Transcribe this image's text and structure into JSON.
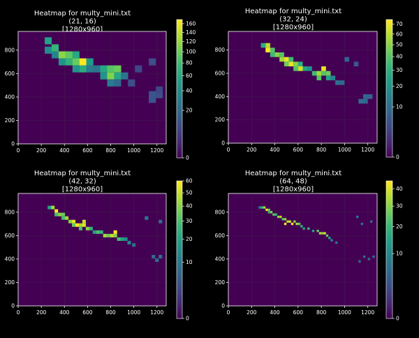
{
  "theme": {
    "background": "#000000",
    "foreground": "#ffffff",
    "grid": "#3a3a3a",
    "colormap": "viridis"
  },
  "chart_data": [
    {
      "type": "heatmap",
      "title": [
        "Heatmap for multy_mini.txt",
        "(21, 16)",
        "[1280x960]"
      ],
      "grid_size": [
        21,
        16
      ],
      "xlim": [
        0,
        1280
      ],
      "ylim": [
        0,
        960
      ],
      "xticks": [
        0,
        200,
        400,
        600,
        800,
        1000,
        1200
      ],
      "yticks": [
        0,
        200,
        400,
        600,
        800
      ],
      "colorbar": {
        "min": 0,
        "max": 170,
        "scale": "sqrt",
        "ticks": [
          0,
          20,
          40,
          60,
          80,
          100,
          120,
          140,
          160
        ]
      },
      "cells": [
        [
          260,
          880,
          55
        ],
        [
          260,
          800,
          40
        ],
        [
          320,
          820,
          75
        ],
        [
          320,
          760,
          35
        ],
        [
          380,
          760,
          115
        ],
        [
          380,
          700,
          45
        ],
        [
          440,
          760,
          95
        ],
        [
          440,
          700,
          70
        ],
        [
          500,
          760,
          60
        ],
        [
          500,
          700,
          100
        ],
        [
          500,
          640,
          45
        ],
        [
          560,
          700,
          170
        ],
        [
          560,
          640,
          65
        ],
        [
          620,
          700,
          50
        ],
        [
          620,
          640,
          30
        ],
        [
          680,
          640,
          25
        ],
        [
          740,
          640,
          60
        ],
        [
          740,
          580,
          45
        ],
        [
          800,
          640,
          90
        ],
        [
          800,
          580,
          110
        ],
        [
          800,
          520,
          30
        ],
        [
          860,
          640,
          100
        ],
        [
          860,
          580,
          60
        ],
        [
          860,
          520,
          20
        ],
        [
          920,
          580,
          25
        ],
        [
          980,
          520,
          10
        ],
        [
          1040,
          640,
          8
        ],
        [
          1160,
          700,
          10
        ],
        [
          1160,
          420,
          12
        ],
        [
          1220,
          420,
          10
        ],
        [
          1160,
          380,
          12
        ],
        [
          1220,
          460,
          8
        ]
      ]
    },
    {
      "type": "heatmap",
      "title": [
        "Heatmap for multy_mini.txt",
        "(32, 24)",
        "[1280x960]"
      ],
      "grid_size": [
        32,
        24
      ],
      "xlim": [
        0,
        1280
      ],
      "ylim": [
        0,
        960
      ],
      "xticks": [
        0,
        200,
        400,
        600,
        800,
        1000,
        1200
      ],
      "yticks": [
        0,
        200,
        400,
        600,
        800
      ],
      "colorbar": {
        "min": 0,
        "max": 75,
        "scale": "sqrt",
        "ticks": [
          0,
          10,
          20,
          30,
          40,
          50,
          60,
          70
        ]
      },
      "cells": [
        [
          300,
          840,
          30
        ],
        [
          340,
          840,
          60
        ],
        [
          340,
          800,
          75
        ],
        [
          380,
          800,
          40
        ],
        [
          380,
          760,
          35
        ],
        [
          420,
          760,
          50
        ],
        [
          460,
          760,
          40
        ],
        [
          460,
          720,
          55
        ],
        [
          500,
          720,
          70
        ],
        [
          500,
          680,
          45
        ],
        [
          540,
          720,
          35
        ],
        [
          540,
          680,
          70
        ],
        [
          580,
          680,
          50
        ],
        [
          580,
          640,
          40
        ],
        [
          620,
          640,
          65
        ],
        [
          620,
          680,
          30
        ],
        [
          660,
          640,
          25
        ],
        [
          700,
          640,
          20
        ],
        [
          740,
          600,
          35
        ],
        [
          780,
          600,
          55
        ],
        [
          780,
          560,
          40
        ],
        [
          820,
          640,
          70
        ],
        [
          820,
          600,
          40
        ],
        [
          860,
          600,
          45
        ],
        [
          860,
          560,
          25
        ],
        [
          900,
          560,
          15
        ],
        [
          940,
          520,
          10
        ],
        [
          980,
          520,
          8
        ],
        [
          1020,
          720,
          8
        ],
        [
          1100,
          680,
          6
        ],
        [
          1180,
          400,
          8
        ],
        [
          1220,
          400,
          8
        ],
        [
          1140,
          360,
          10
        ],
        [
          1180,
          360,
          8
        ]
      ]
    },
    {
      "type": "heatmap",
      "title": [
        "Heatmap for multy_mini.txt",
        "(42, 32)",
        "[1280x960]"
      ],
      "grid_size": [
        42,
        32
      ],
      "xlim": [
        0,
        1280
      ],
      "ylim": [
        0,
        960
      ],
      "xticks": [
        0,
        200,
        400,
        600,
        800,
        1000,
        1200
      ],
      "yticks": [
        0,
        200,
        400,
        600,
        800
      ],
      "colorbar": {
        "min": 0,
        "max": 60,
        "scale": "sqrt",
        "ticks": [
          0,
          10,
          20,
          30,
          40,
          50,
          60
        ]
      },
      "cells": [
        [
          270,
          840,
          20
        ],
        [
          300,
          840,
          45
        ],
        [
          330,
          810,
          60
        ],
        [
          330,
          780,
          30
        ],
        [
          360,
          780,
          40
        ],
        [
          390,
          780,
          35
        ],
        [
          390,
          750,
          30
        ],
        [
          420,
          750,
          45
        ],
        [
          450,
          720,
          40
        ],
        [
          480,
          720,
          55
        ],
        [
          480,
          690,
          35
        ],
        [
          510,
          690,
          60
        ],
        [
          540,
          690,
          45
        ],
        [
          540,
          660,
          30
        ],
        [
          570,
          690,
          55
        ],
        [
          570,
          720,
          50
        ],
        [
          600,
          660,
          40
        ],
        [
          630,
          660,
          25
        ],
        [
          660,
          630,
          20
        ],
        [
          690,
          630,
          30
        ],
        [
          720,
          630,
          25
        ],
        [
          750,
          600,
          45
        ],
        [
          780,
          600,
          35
        ],
        [
          810,
          600,
          50
        ],
        [
          840,
          630,
          60
        ],
        [
          840,
          600,
          40
        ],
        [
          870,
          570,
          30
        ],
        [
          900,
          570,
          20
        ],
        [
          930,
          570,
          15
        ],
        [
          960,
          540,
          12
        ],
        [
          1000,
          520,
          8
        ],
        [
          1110,
          750,
          10
        ],
        [
          1230,
          720,
          8
        ],
        [
          1170,
          420,
          8
        ],
        [
          1200,
          390,
          8
        ],
        [
          1230,
          420,
          8
        ]
      ]
    },
    {
      "type": "heatmap",
      "title": [
        "Heatmap for multy_mini.txt",
        "(64, 48)",
        "[1280x960]"
      ],
      "grid_size": [
        64,
        48
      ],
      "xlim": [
        0,
        1280
      ],
      "ylim": [
        0,
        960
      ],
      "xticks": [
        0,
        200,
        400,
        600,
        800,
        1000,
        1200
      ],
      "yticks": [
        0,
        200,
        400,
        600,
        800
      ],
      "colorbar": {
        "min": 0,
        "max": 45,
        "scale": "sqrt",
        "ticks": [
          0,
          10,
          20,
          30,
          40
        ]
      },
      "cells": [
        [
          270,
          840,
          10
        ],
        [
          290,
          840,
          20
        ],
        [
          310,
          840,
          35
        ],
        [
          330,
          820,
          45
        ],
        [
          350,
          820,
          25
        ],
        [
          350,
          800,
          20
        ],
        [
          370,
          800,
          30
        ],
        [
          390,
          780,
          25
        ],
        [
          410,
          780,
          20
        ],
        [
          430,
          760,
          30
        ],
        [
          450,
          760,
          35
        ],
        [
          470,
          740,
          25
        ],
        [
          490,
          740,
          30
        ],
        [
          490,
          700,
          45
        ],
        [
          510,
          720,
          35
        ],
        [
          530,
          720,
          40
        ],
        [
          550,
          700,
          45
        ],
        [
          570,
          720,
          30
        ],
        [
          590,
          700,
          35
        ],
        [
          610,
          700,
          25
        ],
        [
          630,
          680,
          20
        ],
        [
          650,
          660,
          15
        ],
        [
          690,
          660,
          20
        ],
        [
          730,
          640,
          15
        ],
        [
          770,
          640,
          25
        ],
        [
          790,
          620,
          35
        ],
        [
          810,
          620,
          30
        ],
        [
          830,
          620,
          40
        ],
        [
          850,
          600,
          25
        ],
        [
          870,
          580,
          15
        ],
        [
          890,
          560,
          10
        ],
        [
          930,
          540,
          8
        ],
        [
          1110,
          760,
          8
        ],
        [
          1150,
          700,
          6
        ],
        [
          1230,
          720,
          6
        ],
        [
          1170,
          420,
          6
        ],
        [
          1210,
          400,
          6
        ],
        [
          1250,
          420,
          6
        ],
        [
          1130,
          380,
          6
        ]
      ]
    }
  ]
}
